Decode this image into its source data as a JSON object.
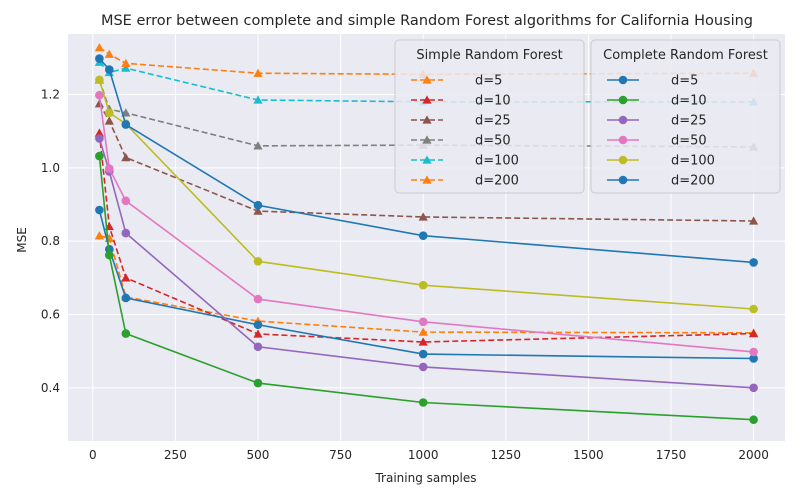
{
  "chart_data": {
    "type": "line",
    "title": "MSE error between complete and simple Random Forest algorithms for California Housing",
    "xlabel": "Training samples",
    "ylabel": "MSE",
    "xlim": [
      -75,
      2095
    ],
    "ylim": [
      0.255,
      1.365
    ],
    "xticks": [
      0,
      250,
      500,
      750,
      1000,
      1250,
      1500,
      1750,
      2000
    ],
    "yticks": [
      0.4,
      0.6,
      0.8,
      1.0,
      1.2
    ],
    "ytick_labels": [
      "0.4",
      "0.6",
      "0.8",
      "1.0",
      "1.2"
    ],
    "grid": true,
    "x": [
      20,
      50,
      100,
      500,
      1000,
      2000
    ],
    "legends": [
      {
        "title": "Simple Random Forest",
        "series": [
          {
            "name": "d=5",
            "color": "#ff7f0e",
            "dashed": true,
            "marker": "triangle",
            "values": [
              0.815,
              0.808,
              0.648,
              0.582,
              0.552,
              0.55
            ]
          },
          {
            "name": "d=10",
            "color": "#d62728",
            "dashed": true,
            "marker": "triangle",
            "values": [
              1.095,
              0.84,
              0.7,
              0.547,
              0.525,
              0.548
            ]
          },
          {
            "name": "d=25",
            "color": "#8c564b",
            "dashed": true,
            "marker": "triangle",
            "values": [
              1.175,
              1.128,
              1.028,
              0.882,
              0.866,
              0.855
            ]
          },
          {
            "name": "d=50",
            "color": "#7f7f7f",
            "dashed": true,
            "marker": "triangle",
            "values": [
              1.24,
              1.16,
              1.15,
              1.06,
              1.062,
              1.057
            ]
          },
          {
            "name": "d=100",
            "color": "#17becf",
            "dashed": true,
            "marker": "triangle",
            "values": [
              1.288,
              1.26,
              1.272,
              1.185,
              1.18,
              1.18
            ]
          },
          {
            "name": "d=200",
            "color": "#ff7f0e",
            "dashed": true,
            "marker": "triangle",
            "values": [
              1.328,
              1.31,
              1.285,
              1.258,
              1.255,
              1.258
            ]
          }
        ]
      },
      {
        "title": "Complete Random Forest",
        "series": [
          {
            "name": "d=5",
            "color": "#1f77b4",
            "dashed": false,
            "marker": "circle",
            "values": [
              0.885,
              0.778,
              0.645,
              0.572,
              0.492,
              0.48
            ]
          },
          {
            "name": "d=10",
            "color": "#2ca02c",
            "dashed": false,
            "marker": "circle",
            "values": [
              1.032,
              0.762,
              0.548,
              0.413,
              0.36,
              0.313
            ]
          },
          {
            "name": "d=25",
            "color": "#9467bd",
            "dashed": false,
            "marker": "circle",
            "values": [
              1.08,
              0.99,
              0.822,
              0.512,
              0.457,
              0.4
            ]
          },
          {
            "name": "d=50",
            "color": "#e377c2",
            "dashed": false,
            "marker": "circle",
            "values": [
              1.198,
              0.998,
              0.91,
              0.642,
              0.58,
              0.498
            ]
          },
          {
            "name": "d=100",
            "color": "#bcbd22",
            "dashed": false,
            "marker": "circle",
            "values": [
              1.24,
              1.15,
              1.12,
              0.745,
              0.68,
              0.615
            ]
          },
          {
            "name": "d=200",
            "color": "#1f77b4",
            "dashed": false,
            "marker": "circle",
            "values": [
              1.298,
              1.268,
              1.118,
              0.898,
              0.815,
              0.742
            ]
          }
        ]
      }
    ]
  }
}
